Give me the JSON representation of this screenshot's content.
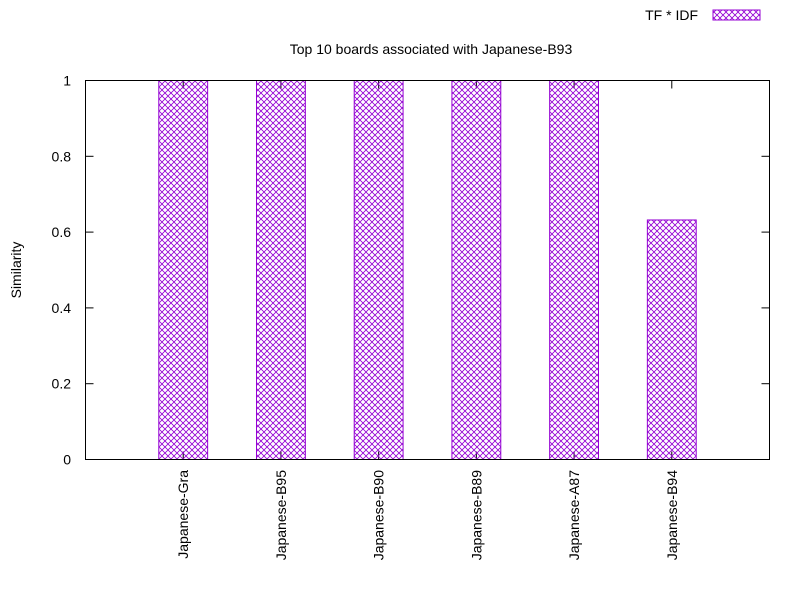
{
  "chart_data": {
    "type": "bar",
    "title": "Top 10 boards associated with Japanese-B93",
    "xlabel": "",
    "ylabel": "Similarity",
    "ylim": [
      0,
      1
    ],
    "yticks": [
      "0",
      "0.2",
      "0.4",
      "0.6",
      "0.8",
      "1"
    ],
    "categories": [
      "Japanese-Gra",
      "Japanese-B95",
      "Japanese-B90",
      "Japanese-B89",
      "Japanese-A87",
      "Japanese-B94"
    ],
    "series": [
      {
        "name": "TF * IDF",
        "values": [
          1,
          1,
          1,
          1,
          1,
          0.632
        ]
      }
    ],
    "legend_position": "top-right",
    "colors": {
      "bar": "#9400d3"
    }
  }
}
